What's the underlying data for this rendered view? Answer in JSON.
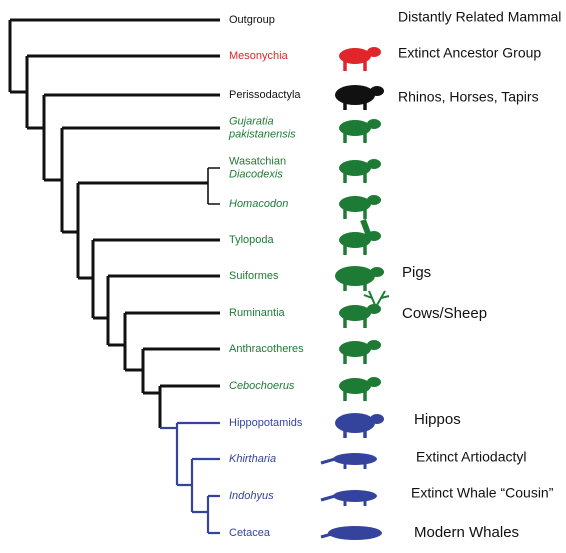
{
  "taxa": [
    {
      "lines": [
        "Outgroup"
      ],
      "note": "Distantly Related Mammal"
    },
    {
      "lines": [
        "Mesonychia"
      ],
      "note": "Extinct Ancestor Group"
    },
    {
      "lines": [
        "Perissodactyla"
      ],
      "note": "Rhinos, Horses, Tapirs"
    },
    {
      "lines": [
        "Gujaratia",
        "pakistanensis"
      ]
    },
    {
      "lines": [
        "Wasatchian",
        "Diacodexis"
      ]
    },
    {
      "lines": [
        "Homacodon"
      ]
    },
    {
      "lines": [
        "Tylopoda"
      ]
    },
    {
      "lines": [
        "Suiformes"
      ],
      "note": "Pigs"
    },
    {
      "lines": [
        "Ruminantia"
      ],
      "note": "Cows/Sheep"
    },
    {
      "lines": [
        "Anthracotheres"
      ]
    },
    {
      "lines": [
        "Cebochoerus"
      ]
    },
    {
      "lines": [
        "Hippopotamids"
      ],
      "note": "Hippos"
    },
    {
      "lines": [
        "Khirtharia"
      ],
      "note": "Extinct Artiodactyl"
    },
    {
      "lines": [
        "Indohyus"
      ],
      "note": "Extinct Whale “Cousin”"
    },
    {
      "lines": [
        "Cetacea"
      ],
      "note": "Modern Whales"
    }
  ]
}
